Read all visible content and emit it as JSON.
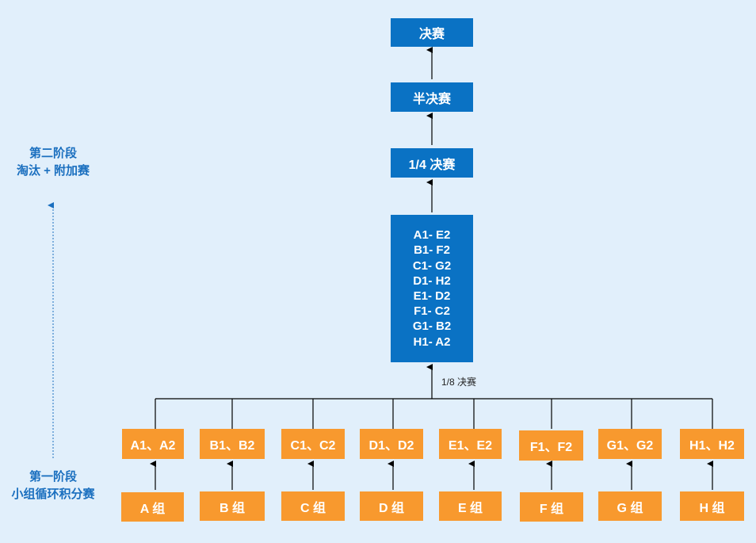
{
  "stages": {
    "second": {
      "line1": "第二阶段",
      "line2": "淘汰 + 附加赛"
    },
    "first": {
      "line1": "第一阶段",
      "line2": "小组循环积分赛"
    }
  },
  "knockout": {
    "final": "决赛",
    "semi": "半决赛",
    "quarter": "1/4 决赛",
    "round16_label": "1/8 决赛",
    "matches": [
      "A1- E2",
      "B1- F2",
      "C1- G2",
      "D1- H2",
      "E1- D2",
      "F1- C2",
      "G1- B2",
      "H1- A2"
    ]
  },
  "qualifiers": [
    "A1、A2",
    "B1、B2",
    "C1、C2",
    "D1、D2",
    "E1、E2",
    "F1、F2",
    "G1、G2",
    "H1、H2"
  ],
  "groups": [
    "A 组",
    "B 组",
    "C 组",
    "D 组",
    "E 组",
    "F 组",
    "G 组",
    "H 组"
  ],
  "colors": {
    "blue": "#0a72c4",
    "orange": "#f8992e",
    "background": "#e1effb",
    "label": "#1a6fbf"
  }
}
